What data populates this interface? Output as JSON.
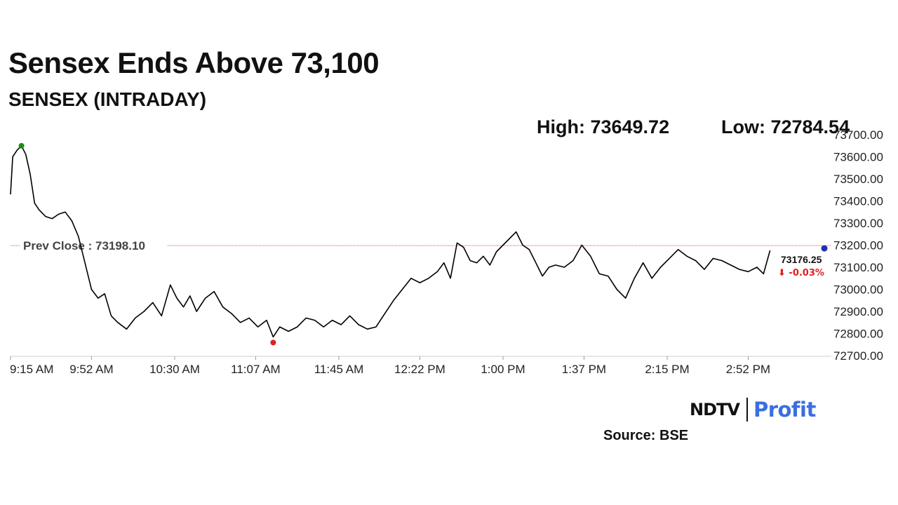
{
  "header": {
    "title": "Sensex Ends Above 73,100",
    "subtitle": "SENSEX (INTRADAY)",
    "high": "High: 73649.72",
    "low": "Low: 72784.54"
  },
  "footer": {
    "logo_left": "NDTV",
    "logo_right": "Profit",
    "source": "Source: BSE"
  },
  "colors": {
    "line": "#000000",
    "high_marker": "#1a8f1a",
    "low_marker": "#e02020",
    "last_marker": "#2430a8",
    "prev_close_line": "#e05050",
    "change_negative": "#e02020",
    "logo_profit": "#3b6fe0"
  },
  "chart_data": {
    "type": "line",
    "title": "SENSEX (INTRADAY)",
    "ylim": [
      72700,
      73700
    ],
    "y_ticks": [
      "73700.00",
      "73600.00",
      "73500.00",
      "73400.00",
      "73300.00",
      "73200.00",
      "73100.00",
      "73000.00",
      "72900.00",
      "72800.00",
      "72700.00"
    ],
    "y_tick_values": [
      73700,
      73600,
      73500,
      73400,
      73300,
      73200,
      73100,
      73000,
      72900,
      72800,
      72700
    ],
    "x_ticks": [
      "9:15 AM",
      "9:52 AM",
      "10:30 AM",
      "11:07 AM",
      "11:45 AM",
      "12:22 PM",
      "1:00 PM",
      "1:37 PM",
      "2:15 PM",
      "2:52 PM"
    ],
    "x_tick_minutes": [
      555,
      592,
      630,
      667,
      705,
      742,
      780,
      817,
      855,
      892
    ],
    "x_range_minutes": [
      555,
      930
    ],
    "grid": false,
    "prev_close": {
      "label": "Prev Close : 73198.10",
      "value": 73198.1
    },
    "high": {
      "time_minutes": 560,
      "value": 73649.72
    },
    "low": {
      "time_minutes": 675,
      "value": 72784.54
    },
    "last": {
      "label": "73176.25",
      "change": "⬇ -0.03%",
      "value": 73176.25,
      "time_minutes": 902
    },
    "series": [
      {
        "x": [
          555,
          556,
          558,
          560,
          562,
          564,
          566,
          568,
          571,
          574,
          577,
          580,
          583,
          586,
          589,
          592,
          595,
          598,
          601,
          604,
          608,
          612,
          616,
          620,
          624,
          628,
          631,
          634,
          637,
          640,
          644,
          648,
          652,
          656,
          660,
          664,
          668,
          672,
          675,
          678,
          682,
          686,
          690,
          694,
          698,
          702,
          706,
          710,
          714,
          718,
          722,
          726,
          730,
          734,
          738,
          742,
          746,
          750,
          753,
          756,
          759,
          762,
          765,
          768,
          771,
          774,
          777,
          780,
          783,
          786,
          789,
          792,
          795,
          798,
          801,
          804,
          808,
          812,
          816,
          820,
          824,
          828,
          832,
          836,
          840,
          844,
          848,
          852,
          856,
          860,
          864,
          868,
          872,
          876,
          880,
          884,
          888,
          892,
          896,
          899,
          902
        ],
        "y": [
          73430,
          73600,
          73630,
          73650,
          73610,
          73520,
          73390,
          73360,
          73330,
          73320,
          73340,
          73350,
          73310,
          73240,
          73120,
          73000,
          72960,
          72980,
          72880,
          72850,
          72820,
          72870,
          72900,
          72940,
          72880,
          73020,
          72960,
          72920,
          72970,
          72900,
          72960,
          72990,
          72920,
          72890,
          72850,
          72870,
          72830,
          72860,
          72784.54,
          72830,
          72810,
          72830,
          72870,
          72860,
          72830,
          72860,
          72840,
          72880,
          72840,
          72820,
          72830,
          72890,
          72950,
          73000,
          73050,
          73030,
          73050,
          73080,
          73120,
          73050,
          73210,
          73190,
          73130,
          73120,
          73150,
          73110,
          73170,
          73200,
          73230,
          73260,
          73200,
          73180,
          73120,
          73060,
          73100,
          73110,
          73100,
          73130,
          73200,
          73150,
          73070,
          73060,
          73000,
          72960,
          73050,
          73120,
          73050,
          73100,
          73140,
          73180,
          73150,
          73130,
          73090,
          73140,
          73130,
          73110,
          73090,
          73080,
          73100,
          73070,
          73176.25
        ]
      }
    ]
  }
}
